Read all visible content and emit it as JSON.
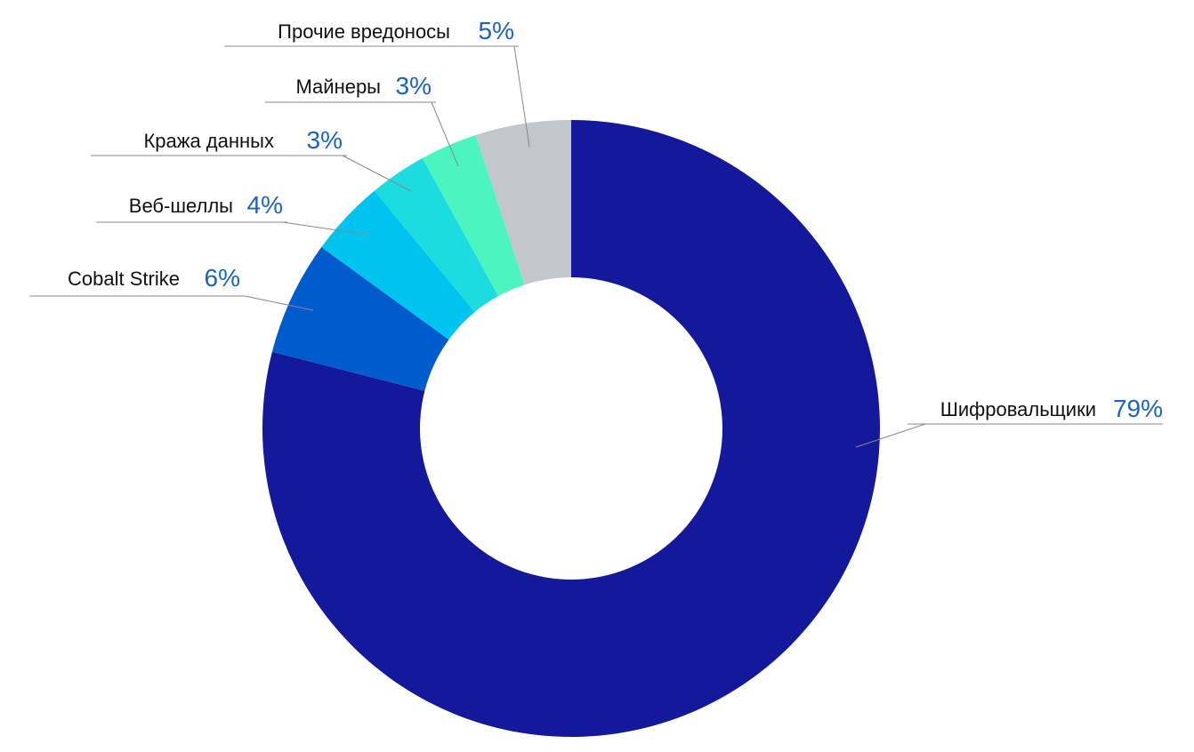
{
  "chart_data": {
    "type": "donut",
    "categories": [
      "Шифровальщики",
      "Cobalt Strike",
      "Веб-шеллы",
      "Кража данных",
      "Майнеры",
      "Прочие вредоносы"
    ],
    "values": [
      79,
      6,
      4,
      3,
      3,
      5
    ],
    "value_labels": [
      "79%",
      "6%",
      "4%",
      "3%",
      "3%",
      "5%"
    ],
    "colors": [
      "#14199b",
      "#005ccc",
      "#00c4f0",
      "#1cdce0",
      "#4cf5c0",
      "#c3c6cc"
    ]
  }
}
